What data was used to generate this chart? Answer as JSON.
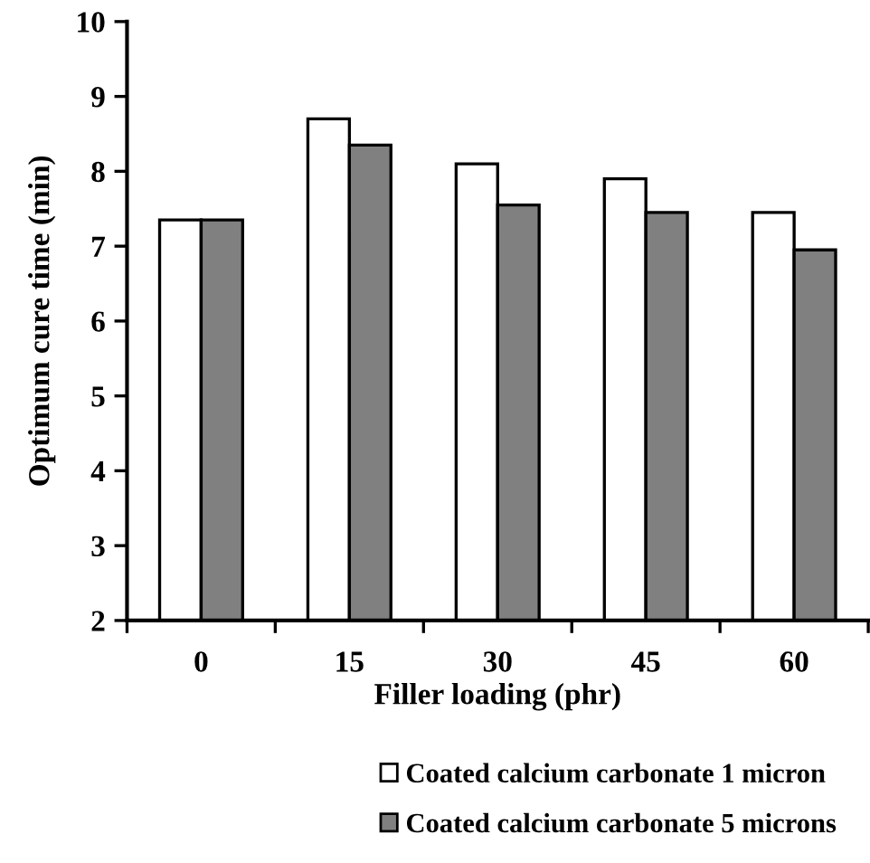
{
  "chart_data": {
    "type": "bar",
    "xlabel": "Filler loading (phr)",
    "ylabel": "Optimum cure time (min)",
    "categories": [
      "0",
      "15",
      "30",
      "45",
      "60"
    ],
    "series": [
      {
        "name": "Coated calcium carbonate 1 micron",
        "color": "#ffffff",
        "values": [
          7.35,
          8.7,
          8.1,
          7.9,
          7.45
        ]
      },
      {
        "name": "Coated calcium carbonate 5 microns",
        "color": "#808080",
        "values": [
          7.35,
          8.35,
          7.55,
          7.45,
          6.95
        ]
      }
    ],
    "ylim": [
      2,
      10
    ],
    "yticks": [
      2,
      3,
      4,
      5,
      6,
      7,
      8,
      9,
      10
    ],
    "grid": false,
    "legend": "bottom"
  }
}
